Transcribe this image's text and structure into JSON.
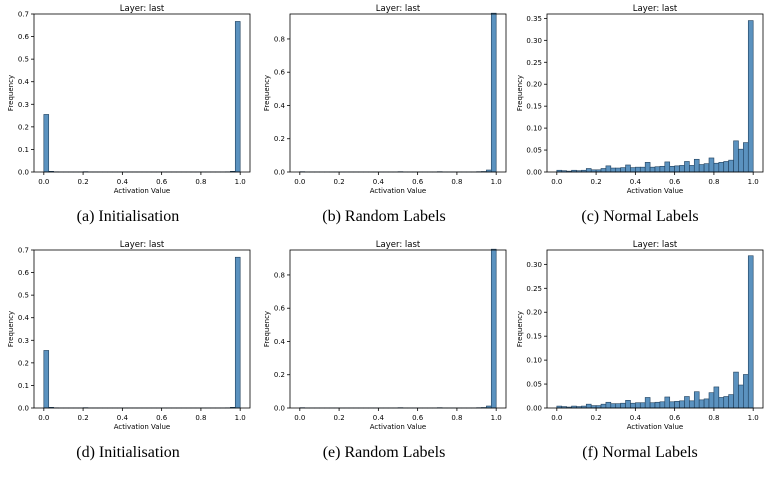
{
  "bin_edges": [
    0.0,
    0.025,
    0.05,
    0.075,
    0.1,
    0.125,
    0.15,
    0.175,
    0.2,
    0.225,
    0.25,
    0.275,
    0.3,
    0.325,
    0.35,
    0.375,
    0.4,
    0.425,
    0.45,
    0.475,
    0.5,
    0.525,
    0.55,
    0.575,
    0.6,
    0.625,
    0.65,
    0.675,
    0.7,
    0.725,
    0.75,
    0.775,
    0.8,
    0.825,
    0.85,
    0.875,
    0.9,
    0.925,
    0.95,
    0.975,
    1.0
  ],
  "colors": {
    "bar_fill": "#5b92bf",
    "bar_edge": "#1f3f5c"
  },
  "chart_data": [
    {
      "type": "bar",
      "title": "Layer: last",
      "xlabel": "Activation Value",
      "ylabel": "Frequency",
      "caption": "(a) Initialisation",
      "xlim": [
        -0.05,
        1.05
      ],
      "ylim": [
        0,
        0.7
      ],
      "xticks": [
        "0.0",
        "0.2",
        "0.4",
        "0.6",
        "0.8",
        "1.0"
      ],
      "yticks": [
        "0.0",
        "0.1",
        "0.2",
        "0.3",
        "0.4",
        "0.5",
        "0.6",
        "0.7"
      ],
      "values": [
        0.255,
        0.003,
        0.001,
        0.0005,
        0.0005,
        0.0005,
        0.0005,
        0.0005,
        0.0015,
        0.0005,
        0.0005,
        0.0005,
        0.0005,
        0.0005,
        0.0005,
        0.0005,
        0.0005,
        0.0005,
        0.0005,
        0.0005,
        0.0005,
        0.0005,
        0.0005,
        0.0005,
        0.0005,
        0.0005,
        0.0005,
        0.0005,
        0.0005,
        0.0005,
        0.0005,
        0.0005,
        0.0005,
        0.0005,
        0.0005,
        0.0005,
        0.0005,
        0.001,
        0.003,
        0.667
      ]
    },
    {
      "type": "bar",
      "title": "Layer: last",
      "xlabel": "Activation Value",
      "ylabel": "Frequency",
      "caption": "(b) Random Labels",
      "xlim": [
        -0.05,
        1.05
      ],
      "ylim": [
        0,
        0.95
      ],
      "xticks": [
        "0.0",
        "0.2",
        "0.4",
        "0.6",
        "0.8",
        "1.0"
      ],
      "yticks": [
        "0.0",
        "0.2",
        "0.4",
        "0.6",
        "0.8"
      ],
      "values": [
        0.002,
        0.0005,
        0.0005,
        0.0005,
        0.0005,
        0.0005,
        0.0005,
        0.0005,
        0.0005,
        0.0005,
        0.0005,
        0.0005,
        0.0005,
        0.0005,
        0.0005,
        0.0005,
        0.0005,
        0.0005,
        0.0005,
        0.0005,
        0.002,
        0.0005,
        0.0005,
        0.0005,
        0.0005,
        0.0005,
        0.0005,
        0.0005,
        0.002,
        0.0005,
        0.0005,
        0.0005,
        0.0005,
        0.0005,
        0.0005,
        0.0005,
        0.002,
        0.003,
        0.012,
        0.955
      ]
    },
    {
      "type": "bar",
      "title": "Layer: last",
      "xlabel": "Activation Value",
      "ylabel": "Frequency",
      "caption": "(c) Normal Labels",
      "xlim": [
        -0.05,
        1.05
      ],
      "ylim": [
        0,
        0.36
      ],
      "xticks": [
        "0.0",
        "0.2",
        "0.4",
        "0.6",
        "0.8",
        "1.0"
      ],
      "yticks": [
        "0.00",
        "0.05",
        "0.10",
        "0.15",
        "0.20",
        "0.25",
        "0.30",
        "0.35"
      ],
      "values": [
        0.004,
        0.003,
        0.002,
        0.004,
        0.003,
        0.004,
        0.008,
        0.005,
        0.005,
        0.008,
        0.014,
        0.009,
        0.009,
        0.01,
        0.016,
        0.01,
        0.011,
        0.011,
        0.022,
        0.011,
        0.012,
        0.013,
        0.023,
        0.013,
        0.014,
        0.015,
        0.024,
        0.015,
        0.029,
        0.017,
        0.019,
        0.032,
        0.02,
        0.022,
        0.024,
        0.027,
        0.071,
        0.052,
        0.067,
        0.345
      ]
    },
    {
      "type": "bar",
      "title": "Layer: last",
      "xlabel": "Activation Value",
      "ylabel": "Frequency",
      "caption": "(d) Initialisation",
      "xlim": [
        -0.05,
        1.05
      ],
      "ylim": [
        0,
        0.7
      ],
      "xticks": [
        "0.0",
        "0.2",
        "0.4",
        "0.6",
        "0.8",
        "1.0"
      ],
      "yticks": [
        "0.0",
        "0.1",
        "0.2",
        "0.3",
        "0.4",
        "0.5",
        "0.6",
        "0.7"
      ],
      "values": [
        0.255,
        0.003,
        0.001,
        0.0005,
        0.0005,
        0.0005,
        0.0005,
        0.0005,
        0.0015,
        0.0005,
        0.0005,
        0.0005,
        0.0005,
        0.0005,
        0.0005,
        0.0005,
        0.0005,
        0.0005,
        0.0005,
        0.0005,
        0.0005,
        0.0005,
        0.0005,
        0.0005,
        0.0005,
        0.0005,
        0.0005,
        0.0005,
        0.0005,
        0.0005,
        0.0005,
        0.0005,
        0.0005,
        0.0005,
        0.0005,
        0.0005,
        0.0005,
        0.001,
        0.003,
        0.668
      ]
    },
    {
      "type": "bar",
      "title": "Layer: last",
      "xlabel": "Activation Value",
      "ylabel": "Frequency",
      "caption": "(e) Random Labels",
      "xlim": [
        -0.05,
        1.05
      ],
      "ylim": [
        0,
        0.95
      ],
      "xticks": [
        "0.0",
        "0.2",
        "0.4",
        "0.6",
        "0.8",
        "1.0"
      ],
      "yticks": [
        "0.0",
        "0.2",
        "0.4",
        "0.6",
        "0.8"
      ],
      "values": [
        0.002,
        0.0005,
        0.0005,
        0.0005,
        0.0005,
        0.0005,
        0.0005,
        0.0005,
        0.0005,
        0.0005,
        0.0005,
        0.0005,
        0.0005,
        0.0005,
        0.0005,
        0.0005,
        0.0005,
        0.0005,
        0.0005,
        0.0005,
        0.002,
        0.0005,
        0.0005,
        0.0005,
        0.0005,
        0.0005,
        0.0005,
        0.0005,
        0.002,
        0.0005,
        0.0005,
        0.0005,
        0.0005,
        0.0005,
        0.0005,
        0.0005,
        0.002,
        0.003,
        0.012,
        0.955
      ]
    },
    {
      "type": "bar",
      "title": "Layer: last",
      "xlabel": "Activation Value",
      "ylabel": "Frequency",
      "caption": "(f) Normal Labels",
      "xlim": [
        -0.05,
        1.05
      ],
      "ylim": [
        0,
        0.33
      ],
      "xticks": [
        "0.0",
        "0.2",
        "0.4",
        "0.6",
        "0.8",
        "1.0"
      ],
      "yticks": [
        "0.00",
        "0.05",
        "0.10",
        "0.15",
        "0.20",
        "0.25",
        "0.30"
      ],
      "values": [
        0.004,
        0.003,
        0.002,
        0.004,
        0.003,
        0.004,
        0.008,
        0.005,
        0.005,
        0.008,
        0.012,
        0.009,
        0.009,
        0.01,
        0.016,
        0.01,
        0.011,
        0.011,
        0.022,
        0.011,
        0.012,
        0.013,
        0.023,
        0.013,
        0.014,
        0.015,
        0.024,
        0.015,
        0.034,
        0.017,
        0.019,
        0.032,
        0.044,
        0.022,
        0.024,
        0.028,
        0.075,
        0.048,
        0.07,
        0.318
      ]
    }
  ]
}
